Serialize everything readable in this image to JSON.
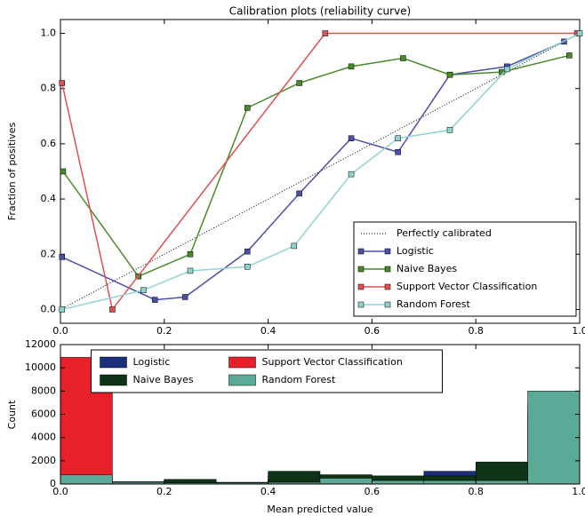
{
  "chart_data": [
    {
      "type": "line",
      "title": "Calibration plots  (reliability curve)",
      "ylabel": "Fraction of positives",
      "xlim": [
        0,
        1
      ],
      "ylim": [
        -0.05,
        1.05
      ],
      "xticks": [
        {
          "value": 0,
          "label": "0.0"
        },
        0.2,
        0.4,
        0.6,
        0.8,
        {
          "value": 1,
          "label": "1.0"
        }
      ],
      "yticks": [
        {
          "value": 0,
          "label": "0.0"
        },
        0.2,
        0.4,
        0.6,
        0.8,
        {
          "value": 1,
          "label": "1.0"
        }
      ],
      "legend": "lower right",
      "series": [
        {
          "name": "Perfectly calibrated",
          "color": "#000000",
          "linestyle": "dotted",
          "x": [
            0,
            1
          ],
          "values": [
            0,
            1
          ]
        },
        {
          "name": "Logistic",
          "color": "#4b4fa8",
          "marker": "s",
          "x": [
            0.003,
            0.182,
            0.24,
            0.36,
            0.46,
            0.56,
            0.65,
            0.75,
            0.86,
            0.97
          ],
          "values": [
            0.19,
            0.035,
            0.045,
            0.21,
            0.42,
            0.62,
            0.57,
            0.85,
            0.88,
            0.97
          ]
        },
        {
          "name": "Naive Bayes",
          "color": "#4a8a2a",
          "marker": "s",
          "x": [
            0.005,
            0.15,
            0.25,
            0.36,
            0.46,
            0.56,
            0.66,
            0.75,
            0.85,
            0.98
          ],
          "values": [
            0.5,
            0.12,
            0.2,
            0.73,
            0.82,
            0.88,
            0.91,
            0.85,
            0.86,
            0.92
          ]
        },
        {
          "name": "Support Vector Classification",
          "color": "#e05050",
          "marker": "s",
          "x": [
            0.003,
            0.1,
            0.51,
            0.995
          ],
          "values": [
            0.82,
            0,
            1,
            1
          ]
        },
        {
          "name": "Random Forest",
          "color": "#8fd3d0",
          "marker": "s",
          "x": [
            0.003,
            0.16,
            0.25,
            0.36,
            0.45,
            0.56,
            0.65,
            0.75,
            0.86,
            1
          ],
          "values": [
            0,
            0.07,
            0.14,
            0.155,
            0.23,
            0.49,
            0.62,
            0.65,
            0.87,
            1
          ]
        }
      ]
    },
    {
      "type": "histogram",
      "xlabel": "Mean predicted value",
      "ylabel": "Count",
      "bins": [
        0,
        0.1,
        0.2,
        0.3,
        0.4,
        0.5,
        0.6,
        0.7,
        0.8,
        0.9,
        1
      ],
      "xlim": [
        0,
        1
      ],
      "ylim": [
        0,
        12000
      ],
      "xticks": [
        {
          "value": 0,
          "label": "0.0"
        },
        0.2,
        0.4,
        0.6,
        0.8,
        {
          "value": 1,
          "label": "1.0"
        }
      ],
      "yticks": [
        0,
        2000,
        4000,
        6000,
        8000,
        10000,
        12000
      ],
      "legend": "upper center",
      "series": [
        {
          "name": "Logistic",
          "color": "#1a2f7a",
          "values": [
            300,
            200,
            350,
            150,
            700,
            600,
            500,
            1100,
            1200,
            7000
          ]
        },
        {
          "name": "Naive Bayes",
          "color": "#0f3317",
          "values": [
            600,
            150,
            400,
            100,
            1100,
            800,
            700,
            700,
            1900,
            6000
          ]
        },
        {
          "name": "Support Vector Classification",
          "color": "#e8202a",
          "values": [
            10900,
            100,
            100,
            50,
            150,
            100,
            50,
            50,
            50,
            50
          ]
        },
        {
          "name": "Random Forest",
          "color": "#5aaa98",
          "values": [
            800,
            150,
            100,
            100,
            150,
            500,
            300,
            300,
            300,
            8000
          ]
        }
      ]
    }
  ]
}
